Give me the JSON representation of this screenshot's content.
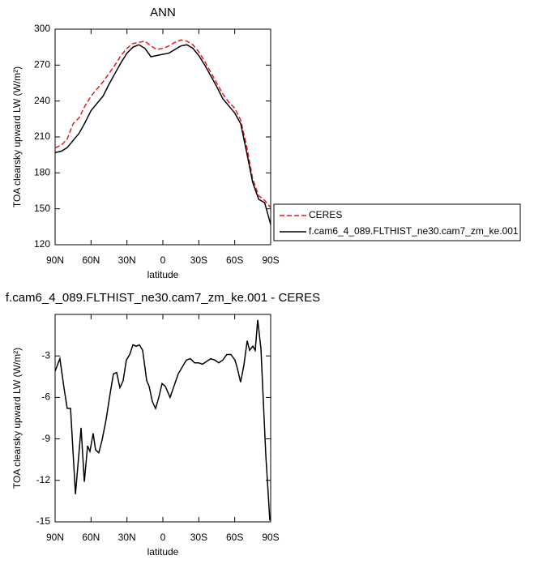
{
  "chart_data": [
    {
      "type": "line",
      "title": "ANN",
      "xlabel": "latitude",
      "ylabel": "TOA clearsky upward LW (W/m²)",
      "xlim": [
        90,
        -90
      ],
      "xticks": [
        {
          "value": 90,
          "label": "90N"
        },
        {
          "value": 60,
          "label": "60N"
        },
        {
          "value": 30,
          "label": "30N"
        },
        0,
        {
          "value": -30,
          "label": "30S"
        },
        {
          "value": -60,
          "label": "60S"
        },
        {
          "value": -90,
          "label": "90S"
        }
      ],
      "ylim": [
        120,
        300
      ],
      "yticks": [
        120,
        150,
        180,
        210,
        240,
        270,
        300
      ],
      "legend": "right",
      "x": [
        90,
        85,
        80,
        75,
        70,
        65,
        60,
        55,
        50,
        45,
        40,
        35,
        30,
        25,
        20,
        15,
        10,
        5,
        0,
        -5,
        -10,
        -15,
        -20,
        -25,
        -30,
        -35,
        -40,
        -45,
        -50,
        -55,
        -60,
        -65,
        -70,
        -75,
        -80,
        -85,
        -90
      ],
      "series": [
        {
          "name": "CERES",
          "color": "#e41a1c",
          "line_style": "dashed",
          "values": [
            201,
            203,
            208,
            221,
            226,
            236,
            244,
            250,
            256,
            263,
            270,
            278,
            284,
            288,
            289,
            290,
            286,
            283,
            284,
            286,
            289,
            291,
            290,
            287,
            281,
            273,
            264,
            255,
            246,
            239,
            234,
            224,
            202,
            175,
            161,
            157,
            151
          ]
        },
        {
          "name": "f.cam6_4_089.FLTHIST_ne30.cam7_zm_ke.001",
          "color": "#000000",
          "line_style": "solid",
          "values": [
            197,
            198,
            201,
            207,
            213,
            222,
            232,
            238,
            244,
            254,
            263,
            272,
            280,
            285,
            287,
            284,
            277,
            278,
            279,
            280,
            283,
            286,
            287,
            284,
            278,
            270,
            261,
            252,
            242,
            236,
            230,
            221,
            197,
            172,
            158,
            155,
            137
          ]
        }
      ]
    },
    {
      "type": "line",
      "title": "f.cam6_4_089.FLTHIST_ne30.cam7_zm_ke.001 - CERES",
      "xlabel": "latitude",
      "ylabel": "TOA clearsky upward LW (W/m²)",
      "xlim": [
        90,
        -90
      ],
      "xticks": [
        {
          "value": 90,
          "label": "90N"
        },
        {
          "value": 60,
          "label": "60N"
        },
        {
          "value": 30,
          "label": "30N"
        },
        0,
        {
          "value": -30,
          "label": "30S"
        },
        {
          "value": -60,
          "label": "60S"
        },
        {
          "value": -90,
          "label": "90S"
        }
      ],
      "ylim": [
        -15,
        0
      ],
      "yticks": [
        -15,
        -12,
        -9,
        -6,
        -3
      ],
      "x": [
        90,
        86,
        82.6,
        79.9,
        77.1,
        73,
        68.3,
        65.6,
        62.9,
        60.9,
        58.2,
        56.2,
        53.5,
        50.8,
        47.4,
        44,
        41.3,
        38.6,
        35.9,
        33.2,
        30.5,
        27.7,
        25,
        22.3,
        19.6,
        16.9,
        13.5,
        11.5,
        8.8,
        6.1,
        3.4,
        0.7,
        -2,
        -6,
        -8.8,
        -12.8,
        -16.2,
        -19.6,
        -23,
        -26.4,
        -29.8,
        -33.1,
        -36.5,
        -39.9,
        -43.3,
        -46.7,
        -50,
        -53.4,
        -56.8,
        -60.2,
        -62.2,
        -64.9,
        -67.6,
        -70.4,
        -72.4,
        -75.1,
        -77.1,
        -79.2,
        -81.9,
        -85.9,
        -89.3
      ],
      "series": [
        {
          "color": "#000000",
          "line_style": "solid",
          "values": [
            -4.1,
            -3.2,
            -5.3,
            -6.8,
            -6.8,
            -13.0,
            -8.2,
            -12.1,
            -9.5,
            -9.9,
            -8.6,
            -9.8,
            -10.0,
            -9.1,
            -7.6,
            -5.7,
            -4.3,
            -4.2,
            -5.3,
            -4.8,
            -3.3,
            -2.9,
            -2.2,
            -2.3,
            -2.2,
            -2.6,
            -4.8,
            -5.2,
            -6.3,
            -6.8,
            -6.0,
            -5.0,
            -5.2,
            -6.0,
            -5.3,
            -4.3,
            -3.8,
            -3.3,
            -3.2,
            -3.5,
            -3.5,
            -3.6,
            -3.4,
            -3.2,
            -3.3,
            -3.5,
            -3.3,
            -2.9,
            -2.9,
            -3.3,
            -3.9,
            -4.9,
            -3.7,
            -1.9,
            -2.6,
            -2.3,
            -2.6,
            -0.4,
            -2.5,
            -10.1,
            -14.9
          ]
        }
      ]
    }
  ]
}
